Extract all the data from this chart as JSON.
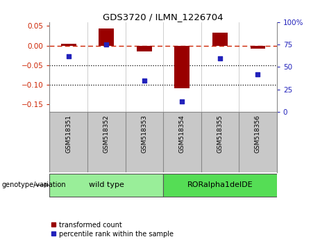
{
  "title": "GDS3720 / ILMN_1226704",
  "samples": [
    "GSM518351",
    "GSM518352",
    "GSM518353",
    "GSM518354",
    "GSM518355",
    "GSM518356"
  ],
  "transformed_count": [
    0.005,
    0.044,
    -0.015,
    -0.11,
    0.033,
    -0.008
  ],
  "percentile_rank_raw": [
    62,
    75,
    35,
    12,
    60,
    42
  ],
  "ylim_left": [
    -0.17,
    0.06
  ],
  "ylim_right": [
    0,
    100
  ],
  "yticks_left": [
    -0.15,
    -0.1,
    -0.05,
    0.0,
    0.05
  ],
  "yticks_right": [
    0,
    25,
    50,
    75,
    100
  ],
  "bar_color": "#990000",
  "dot_color": "#2222bb",
  "hline_color": "#cc2200",
  "dotted_line_color": "#000000",
  "group1_label": "wild type",
  "group2_label": "RORalpha1delDE",
  "group1_color": "#99ee99",
  "group2_color": "#55dd55",
  "group1_samples": [
    0,
    1,
    2
  ],
  "group2_samples": [
    3,
    4,
    5
  ],
  "legend_red_label": "transformed count",
  "legend_blue_label": "percentile rank within the sample",
  "background_color": "#ffffff",
  "sample_bg_color": "#c8c8c8",
  "bar_width": 0.4
}
